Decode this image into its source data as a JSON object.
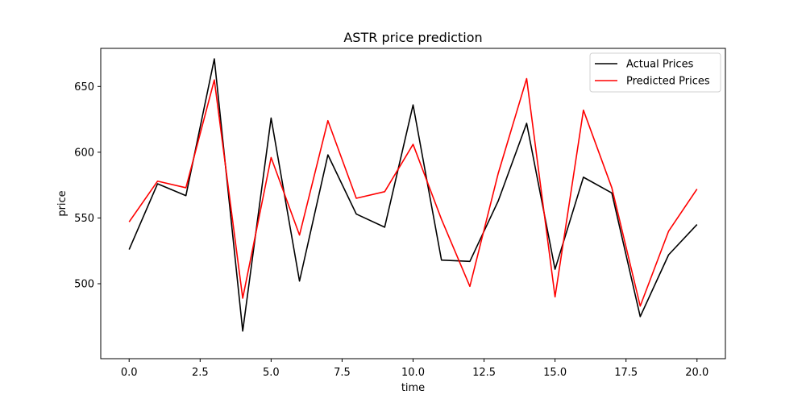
{
  "chart_data": {
    "type": "line",
    "title": "ASTR price prediction",
    "xlabel": "time",
    "ylabel": "price",
    "xlim": [
      -1,
      21
    ],
    "ylim": [
      443,
      679
    ],
    "xticks": [
      0.0,
      2.5,
      5.0,
      7.5,
      10.0,
      12.5,
      15.0,
      17.5,
      20.0
    ],
    "xtick_labels": [
      "0.0",
      "2.5",
      "5.0",
      "7.5",
      "10.0",
      "12.5",
      "15.0",
      "17.5",
      "20.0"
    ],
    "yticks": [
      500,
      550,
      600,
      650
    ],
    "ytick_labels": [
      "500",
      "550",
      "600",
      "650"
    ],
    "grid": false,
    "legend": "top-right",
    "x": [
      0,
      1,
      2,
      3,
      4,
      5,
      6,
      7,
      8,
      9,
      10,
      11,
      12,
      13,
      14,
      15,
      16,
      17,
      18,
      19,
      20
    ],
    "series": [
      {
        "name": "Actual Prices",
        "color": "#000000",
        "values": [
          526,
          576,
          567,
          671,
          464,
          626,
          502,
          598,
          553,
          543,
          636,
          518,
          517,
          563,
          622,
          511,
          581,
          569,
          475,
          522,
          545
        ]
      },
      {
        "name": "Predicted Prices",
        "color": "#ff0000",
        "values": [
          547,
          578,
          573,
          655,
          489,
          596,
          537,
          624,
          565,
          570,
          606,
          549,
          498,
          584,
          656,
          490,
          632,
          573,
          483,
          540,
          572
        ]
      }
    ]
  }
}
